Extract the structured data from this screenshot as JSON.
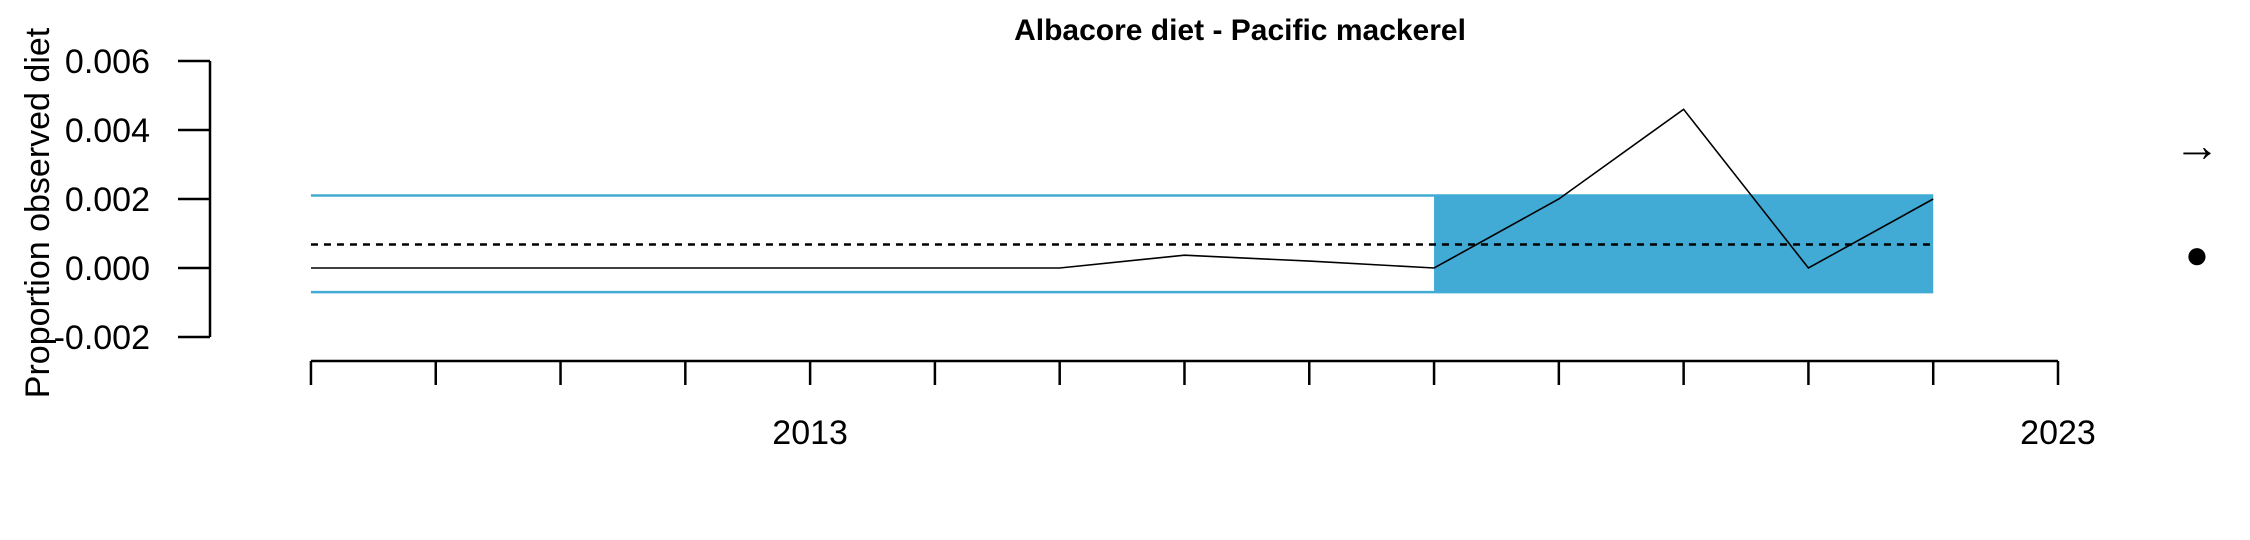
{
  "chart_data": {
    "type": "line",
    "title": "Albacore diet - Pacific mackerel",
    "xlabel": "",
    "ylabel": "Proportion observed diet",
    "x": [
      2009,
      2010,
      2011,
      2012,
      2013,
      2014,
      2015,
      2016,
      2017,
      2018,
      2019,
      2020,
      2021,
      2022
    ],
    "series": [
      {
        "values": [
          0.0,
          0.0,
          0.0,
          0.0,
          0.0,
          0.0,
          0.0,
          0.00037,
          0.0002,
          0.0,
          0.002,
          0.0046,
          0.0,
          0.002
        ]
      }
    ],
    "mean": 0.00068,
    "sd_band": [
      -0.0007,
      0.0021
    ],
    "recent_window": [
      2018,
      2022
    ],
    "xlim": [
      2008.8,
      2023
    ],
    "ylim": [
      -0.002,
      0.006
    ],
    "yticks": [
      -0.002,
      0.0,
      0.002,
      0.004,
      0.006
    ],
    "ytick_labels": [
      "-0.002",
      "0.000",
      "0.002",
      "0.004",
      "0.006"
    ],
    "xtick_years": [
      2009,
      2010,
      2011,
      2012,
      2013,
      2014,
      2015,
      2016,
      2017,
      2018,
      2019,
      2020,
      2021,
      2022,
      2023
    ],
    "xlabels": [
      {
        "year": 2013,
        "label": "2013"
      },
      {
        "year": 2023,
        "label": "2023"
      }
    ],
    "trend_symbol": "→",
    "status_symbol": "●",
    "colors": {
      "band": "#41ABD6",
      "line": "#000000",
      "axis": "#000000"
    },
    "grid": false
  }
}
